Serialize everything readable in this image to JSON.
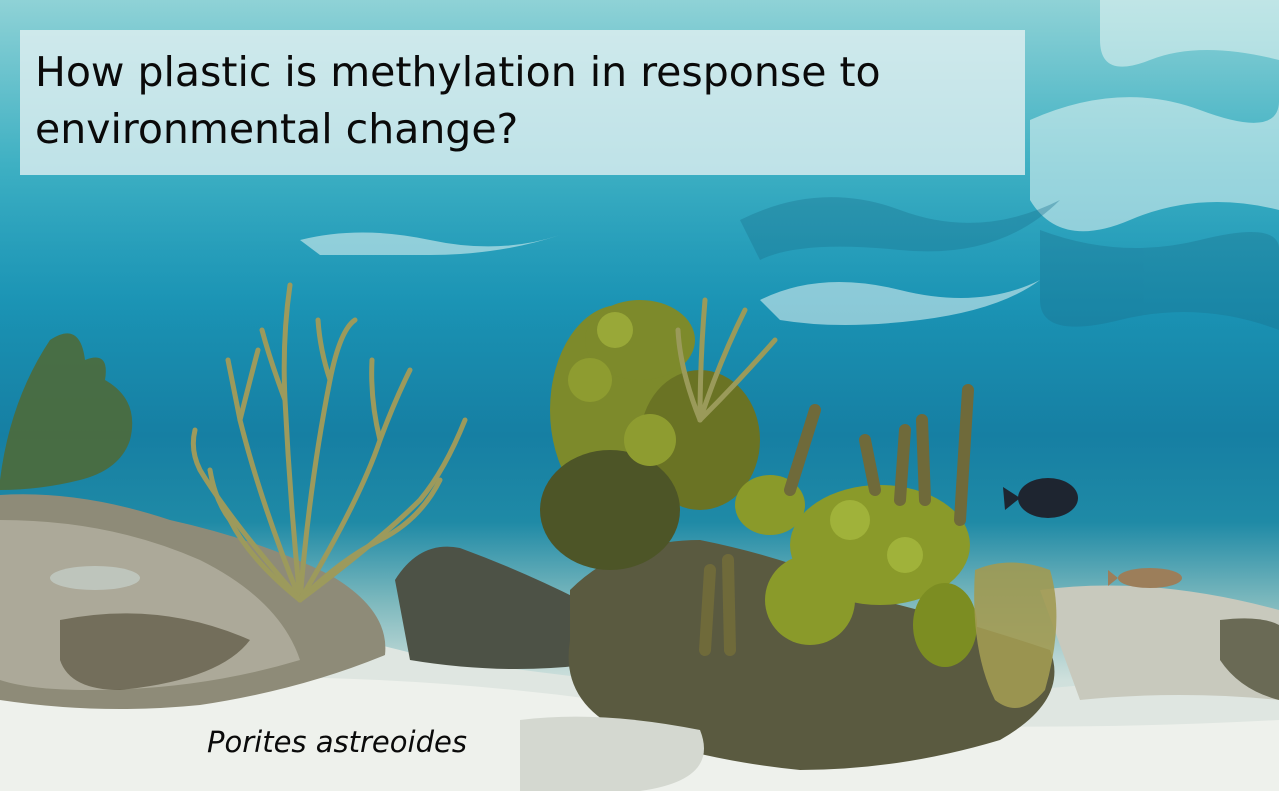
{
  "slide": {
    "title": "How plastic is methylation in response to environmental change?",
    "caption": "Porites astreoides"
  }
}
